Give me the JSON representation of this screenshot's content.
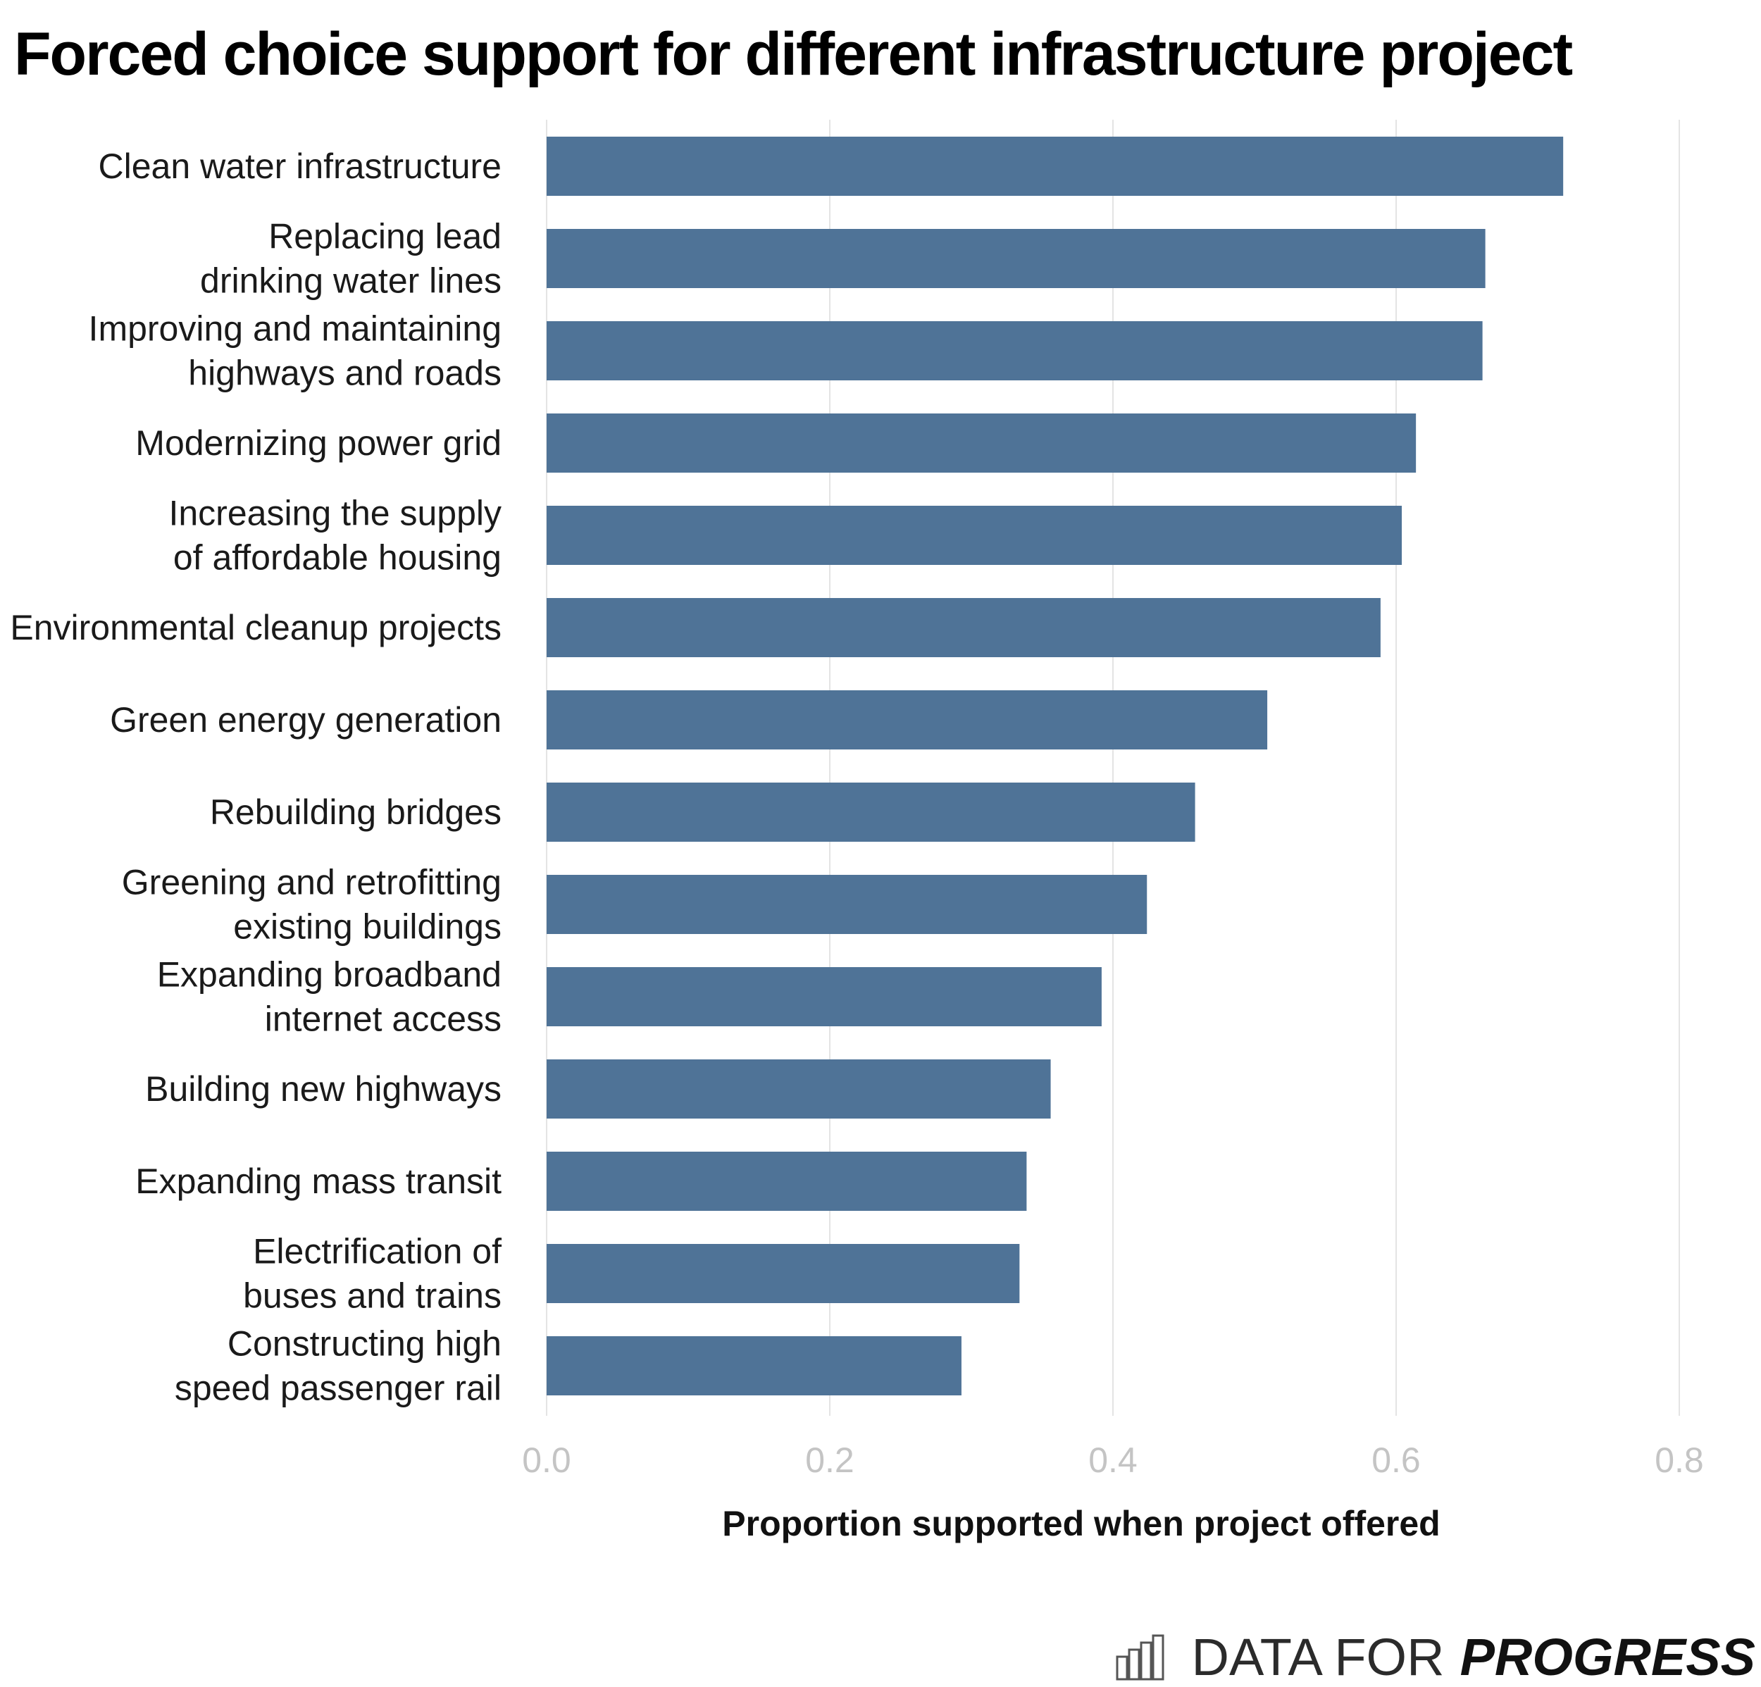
{
  "chart_data": {
    "type": "bar",
    "orientation": "horizontal",
    "title": "Forced choice support for different infrastructure project",
    "xlabel": "Proportion supported when project offered",
    "ylabel": "",
    "xlim": [
      0,
      0.8
    ],
    "x_ticks": [
      "0.0",
      "0.2",
      "0.4",
      "0.6",
      "0.8"
    ],
    "grid": "vertical",
    "bar_color": "#4f7397",
    "categories": [
      [
        "Clean water infrastructure"
      ],
      [
        "Replacing lead",
        "drinking water lines"
      ],
      [
        "Improving and maintaining",
        "highways and roads"
      ],
      [
        "Modernizing power grid"
      ],
      [
        "Increasing the supply",
        "of affordable housing"
      ],
      [
        "Environmental cleanup projects"
      ],
      [
        "Green energy generation"
      ],
      [
        "Rebuilding bridges"
      ],
      [
        "Greening and retrofitting",
        "existing buildings"
      ],
      [
        "Expanding broadband",
        "internet access"
      ],
      [
        "Building new highways"
      ],
      [
        "Expanding mass transit"
      ],
      [
        "Electrification of",
        "buses and trains"
      ],
      [
        "Constructing high",
        "speed passenger rail"
      ]
    ],
    "values": [
      0.718,
      0.663,
      0.661,
      0.614,
      0.604,
      0.589,
      0.509,
      0.458,
      0.424,
      0.392,
      0.356,
      0.339,
      0.334,
      0.293
    ]
  },
  "brand": {
    "icon": "bar-chart-icon",
    "word1": "DATA FOR",
    "word2": "PROGRESS"
  }
}
